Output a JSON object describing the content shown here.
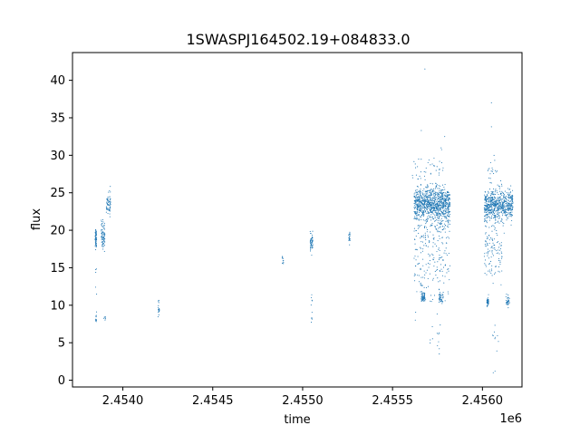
{
  "chart_data": {
    "type": "scatter",
    "title": "1SWASPJ164502.19+084833.0",
    "xlabel": "time",
    "ylabel": "flux",
    "x_offset_label": "1e6",
    "xlim": [
      2.45372,
      2.45622
    ],
    "ylim": [
      -0.9,
      43.7
    ],
    "x_ticks": [
      2.454,
      2.4545,
      2.455,
      2.4555,
      2.456
    ],
    "x_tick_labels": [
      "2.4540",
      "2.4545",
      "2.4550",
      "2.4555",
      "2.4560"
    ],
    "y_ticks": [
      0,
      5,
      10,
      15,
      20,
      25,
      30,
      35,
      40
    ],
    "y_tick_labels": [
      "0",
      "5",
      "10",
      "15",
      "20",
      "25",
      "30",
      "35",
      "40"
    ],
    "grid": false,
    "point_color": "#1f77b4",
    "series": [
      {
        "clusters": [
          {
            "x": 2.45385,
            "dx": 4e-06,
            "y": 19.0,
            "dy": 1.1,
            "n": 60
          },
          {
            "x": 2.45385,
            "dx": 4e-06,
            "y": 8.2,
            "dy": 0.4,
            "n": 10
          },
          {
            "x": 2.45385,
            "dx": 4e-06,
            "y": 12.5,
            "dy": 2.5,
            "n": 6
          },
          {
            "x": 2.45389,
            "dx": 1e-05,
            "y": 19.3,
            "dy": 1.6,
            "n": 80
          },
          {
            "x": 2.4539,
            "dx": 6e-06,
            "y": 8.3,
            "dy": 0.3,
            "n": 6
          },
          {
            "x": 2.45392,
            "dx": 1.2e-05,
            "y": 23.6,
            "dy": 1.3,
            "n": 60
          },
          {
            "x": 2.4542,
            "dx": 4e-06,
            "y": 9.3,
            "dy": 0.4,
            "n": 15
          },
          {
            "x": 2.4542,
            "dx": 4e-06,
            "y": 10.5,
            "dy": 0.3,
            "n": 4
          },
          {
            "x": 2.45489,
            "dx": 4e-06,
            "y": 16.1,
            "dy": 0.6,
            "n": 10
          },
          {
            "x": 2.45505,
            "dx": 8e-06,
            "y": 18.2,
            "dy": 1.0,
            "n": 50
          },
          {
            "x": 2.45505,
            "dx": 4e-06,
            "y": 10.5,
            "dy": 1.0,
            "n": 6
          },
          {
            "x": 2.45505,
            "dx": 4e-06,
            "y": 8.0,
            "dy": 0.5,
            "n": 4
          },
          {
            "x": 2.45526,
            "dx": 4e-06,
            "y": 19.1,
            "dy": 0.6,
            "n": 20
          },
          {
            "x": 2.45572,
            "dx": 0.0001,
            "y": 23.5,
            "dy": 1.8,
            "n": 900
          },
          {
            "x": 2.45572,
            "dx": 0.0001,
            "y": 20.0,
            "dy": 2.5,
            "n": 160
          },
          {
            "x": 2.45572,
            "dx": 0.0001,
            "y": 15.0,
            "dy": 3.5,
            "n": 120
          },
          {
            "x": 2.45567,
            "dx": 1e-05,
            "y": 11.0,
            "dy": 0.6,
            "n": 60
          },
          {
            "x": 2.45577,
            "dx": 1.2e-05,
            "y": 11.0,
            "dy": 0.6,
            "n": 45
          },
          {
            "x": 2.4557,
            "dx": 9e-05,
            "y": 28.5,
            "dy": 1.6,
            "n": 40
          },
          {
            "x": 2.45574,
            "dx": 4e-05,
            "y": 6.0,
            "dy": 1.4,
            "n": 10
          },
          {
            "x": 2.45609,
            "dx": 8e-05,
            "y": 23.2,
            "dy": 1.8,
            "n": 650
          },
          {
            "x": 2.45606,
            "dx": 5e-05,
            "y": 17.5,
            "dy": 3.0,
            "n": 110
          },
          {
            "x": 2.45603,
            "dx": 6e-06,
            "y": 10.5,
            "dy": 0.6,
            "n": 45
          },
          {
            "x": 2.45614,
            "dx": 1e-05,
            "y": 10.5,
            "dy": 0.6,
            "n": 35
          },
          {
            "x": 2.45606,
            "dx": 3e-05,
            "y": 28.0,
            "dy": 2.0,
            "n": 20
          },
          {
            "x": 2.45607,
            "dx": 2e-05,
            "y": 6.0,
            "dy": 1.2,
            "n": 8
          }
        ],
        "outliers": [
          {
            "x": 2.45568,
            "y": 41.5
          },
          {
            "x": 2.45605,
            "y": 37.0
          },
          {
            "x": 2.45605,
            "y": 33.8
          },
          {
            "x": 2.45579,
            "y": 32.5
          },
          {
            "x": 2.45566,
            "y": 33.3
          },
          {
            "x": 2.45576,
            "y": 4.2
          },
          {
            "x": 2.45576,
            "y": 3.5
          },
          {
            "x": 2.45607,
            "y": 1.2
          },
          {
            "x": 2.45606,
            "y": 1.0
          },
          {
            "x": 2.45608,
            "y": 3.9
          }
        ]
      }
    ]
  }
}
